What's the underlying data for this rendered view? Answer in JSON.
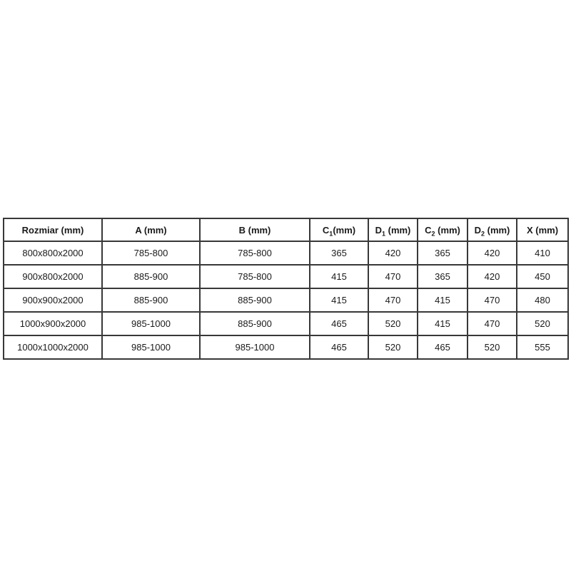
{
  "page": {
    "background_color": "#ffffff",
    "text_color": "#1a1a1a",
    "border_color": "#383838"
  },
  "table": {
    "headers": [
      {
        "pre": "Rozmiar (mm)",
        "sub": "",
        "post": ""
      },
      {
        "pre": "A (mm)",
        "sub": "",
        "post": ""
      },
      {
        "pre": "B (mm)",
        "sub": "",
        "post": ""
      },
      {
        "pre": "C",
        "sub": "1",
        "post": "(mm)"
      },
      {
        "pre": "D",
        "sub": "1",
        "post": " (mm)"
      },
      {
        "pre": "C",
        "sub": "2",
        "post": " (mm)"
      },
      {
        "pre": "D",
        "sub": "2",
        "post": " (mm)"
      },
      {
        "pre": "X (mm)",
        "sub": "",
        "post": ""
      }
    ],
    "rows": [
      [
        "800x800x2000",
        "785-800",
        "785-800",
        "365",
        "420",
        "365",
        "420",
        "410"
      ],
      [
        "900x800x2000",
        "885-900",
        "785-800",
        "415",
        "470",
        "365",
        "420",
        "450"
      ],
      [
        "900x900x2000",
        "885-900",
        "885-900",
        "415",
        "470",
        "415",
        "470",
        "480"
      ],
      [
        "1000x900x2000",
        "985-1000",
        "885-900",
        "465",
        "520",
        "415",
        "470",
        "520"
      ],
      [
        "1000x1000x2000",
        "985-1000",
        "985-1000",
        "465",
        "520",
        "465",
        "520",
        "555"
      ]
    ]
  },
  "chart_data": {
    "type": "table",
    "columns": [
      "Rozmiar (mm)",
      "A (mm)",
      "B (mm)",
      "C₁(mm)",
      "D₁ (mm)",
      "C₂ (mm)",
      "D₂ (mm)",
      "X (mm)"
    ],
    "rows": [
      [
        "800x800x2000",
        "785-800",
        "785-800",
        365,
        420,
        365,
        420,
        410
      ],
      [
        "900x800x2000",
        "885-900",
        "785-800",
        415,
        470,
        365,
        420,
        450
      ],
      [
        "900x900x2000",
        "885-900",
        "885-900",
        415,
        470,
        415,
        470,
        480
      ],
      [
        "1000x900x2000",
        "985-1000",
        "885-900",
        465,
        520,
        415,
        470,
        520
      ],
      [
        "1000x1000x2000",
        "985-1000",
        "985-1000",
        465,
        520,
        465,
        520,
        555
      ]
    ]
  }
}
